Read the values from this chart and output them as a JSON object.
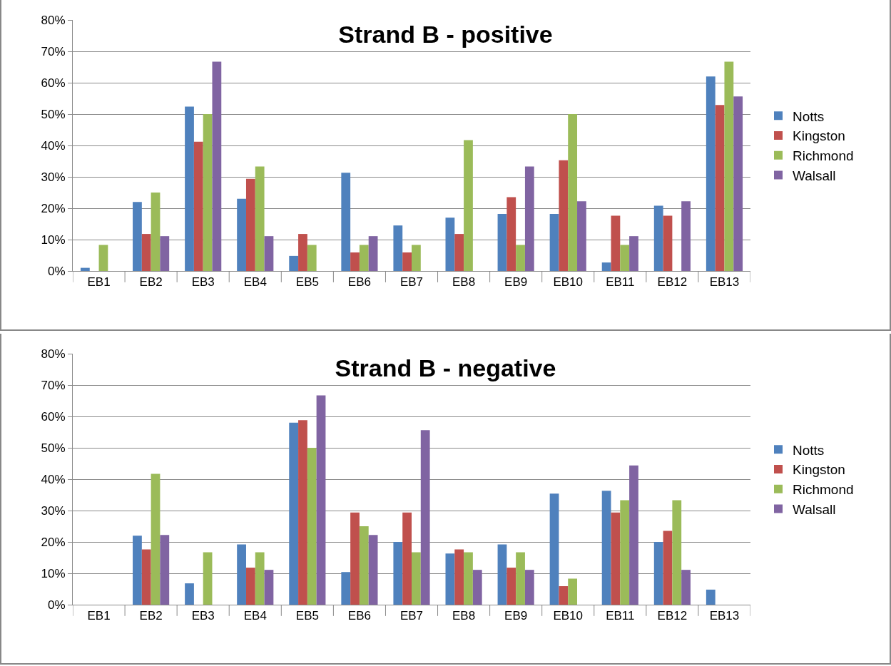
{
  "chart_data": [
    {
      "type": "bar",
      "title": "Strand B - positive",
      "categories": [
        "EB1",
        "EB2",
        "EB3",
        "EB4",
        "EB5",
        "EB6",
        "EB7",
        "EB8",
        "EB9",
        "EB10",
        "EB11",
        "EB12",
        "EB13"
      ],
      "series": [
        {
          "name": "Notts",
          "color": "#4f81bd",
          "values": [
            1,
            22,
            52.4,
            23,
            4.8,
            31.3,
            14.5,
            17,
            18.2,
            18.2,
            2.7,
            20.8,
            62
          ]
        },
        {
          "name": "Kingston",
          "color": "#c0504d",
          "values": [
            0,
            11.8,
            41.2,
            29.4,
            11.8,
            5.9,
            5.9,
            11.8,
            23.5,
            35.3,
            17.6,
            17.6,
            52.9
          ]
        },
        {
          "name": "Richmond",
          "color": "#9bbb59",
          "values": [
            8.3,
            25,
            50,
            33.3,
            8.3,
            8.3,
            8.3,
            41.7,
            8.3,
            50,
            8.3,
            0,
            66.7
          ]
        },
        {
          "name": "Walsall",
          "color": "#8064a2",
          "values": [
            0,
            11.1,
            66.7,
            11.1,
            0,
            11.1,
            0,
            0,
            33.3,
            22.2,
            11.1,
            22.2,
            55.6
          ]
        }
      ],
      "ylim": [
        0,
        80
      ],
      "yticks": [
        {
          "value": 0,
          "label": "0%"
        },
        {
          "value": 10,
          "label": "10%"
        },
        {
          "value": 20,
          "label": "20%"
        },
        {
          "value": 30,
          "label": "30%"
        },
        {
          "value": 40,
          "label": "40%"
        },
        {
          "value": 50,
          "label": "50%"
        },
        {
          "value": 60,
          "label": "60%"
        },
        {
          "value": 70,
          "label": "70%"
        },
        {
          "value": 80,
          "label": "80%"
        }
      ],
      "grid": "y",
      "legend": "right"
    },
    {
      "type": "bar",
      "title": "Strand B - negative",
      "categories": [
        "EB1",
        "EB2",
        "EB3",
        "EB4",
        "EB5",
        "EB6",
        "EB7",
        "EB8",
        "EB9",
        "EB10",
        "EB11",
        "EB12",
        "EB13"
      ],
      "series": [
        {
          "name": "Notts",
          "color": "#4f81bd",
          "values": [
            0,
            22,
            6.8,
            19.2,
            58,
            10.4,
            20,
            16.3,
            19.2,
            35.4,
            36.3,
            20,
            4.8
          ]
        },
        {
          "name": "Kingston",
          "color": "#c0504d",
          "values": [
            0,
            17.6,
            0,
            11.8,
            58.8,
            29.4,
            29.4,
            17.6,
            11.8,
            5.9,
            29.4,
            23.5,
            0
          ]
        },
        {
          "name": "Richmond",
          "color": "#9bbb59",
          "values": [
            0,
            41.7,
            16.7,
            16.7,
            50,
            25,
            16.7,
            16.7,
            16.7,
            8.3,
            33.3,
            33.3,
            0
          ]
        },
        {
          "name": "Walsall",
          "color": "#8064a2",
          "values": [
            0,
            22.2,
            0,
            11.1,
            66.7,
            22.2,
            55.6,
            11.1,
            11.1,
            0,
            44.4,
            11.1,
            0
          ]
        }
      ],
      "ylim": [
        0,
        80
      ],
      "yticks": [
        {
          "value": 0,
          "label": "0%"
        },
        {
          "value": 10,
          "label": "10%"
        },
        {
          "value": 20,
          "label": "20%"
        },
        {
          "value": 30,
          "label": "30%"
        },
        {
          "value": 40,
          "label": "40%"
        },
        {
          "value": 50,
          "label": "50%"
        },
        {
          "value": 60,
          "label": "60%"
        },
        {
          "value": 70,
          "label": "70%"
        },
        {
          "value": 80,
          "label": "80%"
        }
      ],
      "grid": "y",
      "legend": "right"
    }
  ]
}
